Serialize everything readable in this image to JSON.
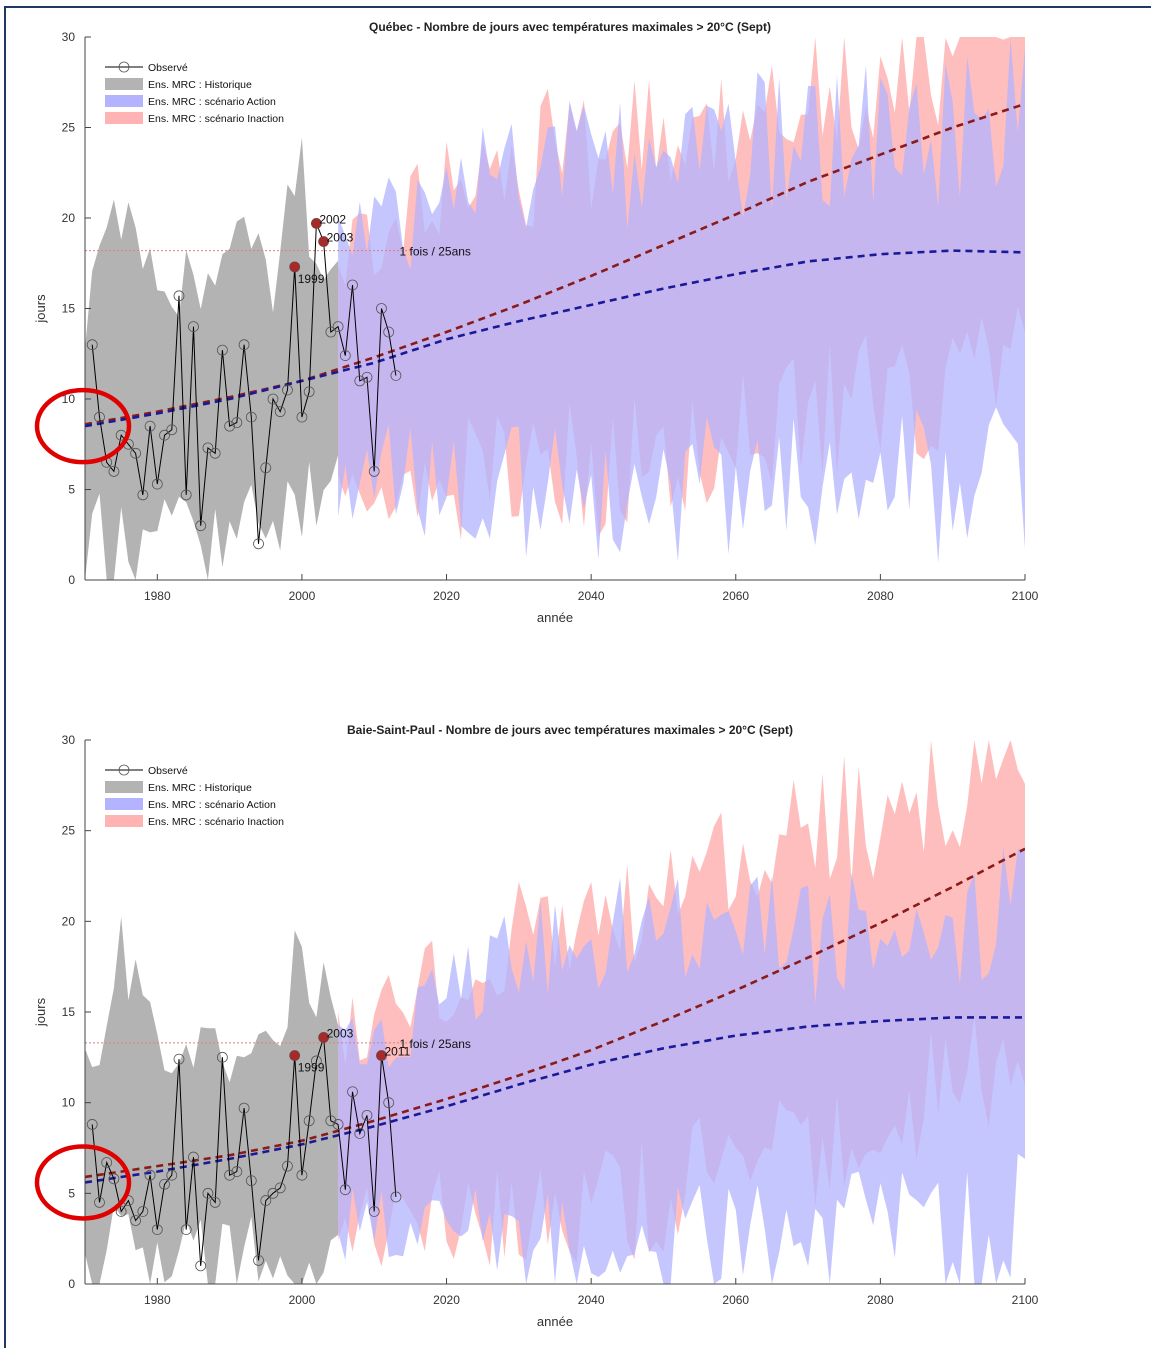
{
  "chart_data": [
    {
      "type": "line",
      "title": "Québec - Nombre de jours avec températures maximales > 20°C (Sept)",
      "xlabel": "année",
      "ylabel": "jours",
      "xlim": [
        1970,
        2100
      ],
      "ylim": [
        0,
        30
      ],
      "xticks": [
        1980,
        2000,
        2020,
        2040,
        2060,
        2080,
        2100
      ],
      "yticks": [
        0,
        5,
        10,
        15,
        20,
        25,
        30
      ],
      "grid": false,
      "legend_placement": "top-left",
      "legend": [
        "Observé",
        "Ens. MRC : Historique",
        "Ens. MRC : scénario Action",
        "Ens. MRC : scénario Inaction"
      ],
      "colors": {
        "observed": "#000000",
        "historique": "#b3b3b3",
        "action": "#b3b3ff",
        "inaction": "#ffb3b3",
        "trend_action": "#1a1a99",
        "trend_inaction": "#8b1a1a",
        "highlight": "#a52a2a",
        "threshold": "#d98080"
      },
      "threshold": {
        "y": 18.2,
        "label": "1 fois / 25ans"
      },
      "observed": {
        "x": [
          1971,
          1972,
          1973,
          1974,
          1975,
          1976,
          1977,
          1978,
          1979,
          1980,
          1981,
          1982,
          1983,
          1984,
          1985,
          1986,
          1987,
          1988,
          1989,
          1990,
          1991,
          1992,
          1993,
          1994,
          1995,
          1996,
          1997,
          1998,
          1999,
          2000,
          2001,
          2002,
          2003,
          2004,
          2005,
          2006,
          2007,
          2008,
          2009,
          2010,
          2011,
          2012,
          2013
        ],
        "y": [
          13,
          9,
          6.5,
          6,
          8,
          7.5,
          7,
          4.7,
          8.5,
          5.3,
          8,
          8.3,
          15.7,
          4.7,
          14,
          3,
          7.3,
          7,
          12.7,
          8.5,
          8.7,
          13,
          9,
          2,
          6.2,
          10,
          9.3,
          10.5,
          17.3,
          9,
          10.4,
          19.7,
          18.7,
          13.7,
          14,
          12.4,
          16.3,
          11,
          11.2,
          6,
          15,
          13.7,
          11.3
        ]
      },
      "highlighted": [
        {
          "x": 1999,
          "y": 17.3,
          "label": "1999"
        },
        {
          "x": 2002,
          "y": 19.7,
          "label": "2002"
        },
        {
          "x": 2003,
          "y": 18.7,
          "label": "2003"
        }
      ],
      "historique_band": {
        "x": [
          1970,
          1975,
          1980,
          1985,
          1990,
          1995,
          2000,
          2005
        ],
        "lower": [
          1,
          2,
          2,
          2,
          2.5,
          3,
          4,
          4.5
        ],
        "upper": [
          16,
          19,
          15,
          17,
          18,
          16,
          22,
          17
        ]
      },
      "action_band": {
        "x": [
          2005,
          2010,
          2020,
          2030,
          2040,
          2050,
          2060,
          2070,
          2080,
          2090,
          2100
        ],
        "lower": [
          6,
          6,
          5,
          5,
          4.5,
          5,
          5,
          5,
          5,
          5,
          6
        ],
        "upper": [
          18,
          19,
          21,
          23,
          23,
          24,
          24,
          24,
          25,
          25,
          26
        ]
      },
      "inaction_band": {
        "x": [
          2005,
          2010,
          2020,
          2030,
          2040,
          2050,
          2060,
          2070,
          2080,
          2090,
          2100
        ],
        "lower": [
          6,
          6,
          5.5,
          6,
          6,
          7,
          8,
          9,
          10,
          11,
          12
        ],
        "upper": [
          18,
          19,
          21,
          23,
          24,
          25,
          26,
          27,
          28,
          29,
          30
        ]
      },
      "trend_action": {
        "x": [
          1970,
          1980,
          1990,
          2000,
          2010,
          2020,
          2030,
          2040,
          2050,
          2060,
          2070,
          2080,
          2090,
          2100
        ],
        "y": [
          8.5,
          9.2,
          10,
          11,
          12,
          13.3,
          14.3,
          15.2,
          16.1,
          16.9,
          17.6,
          18,
          18.2,
          18.1
        ]
      },
      "trend_inaction": {
        "x": [
          1970,
          1980,
          1990,
          2000,
          2010,
          2020,
          2030,
          2040,
          2050,
          2060,
          2070,
          2080,
          2090,
          2100
        ],
        "y": [
          8.6,
          9.3,
          10.1,
          11,
          12.3,
          13.7,
          15.2,
          16.8,
          18.5,
          20.2,
          22,
          23.5,
          25,
          26.3
        ]
      }
    },
    {
      "type": "line",
      "title": "Baie-Saint-Paul - Nombre de jours avec températures maximales > 20°C (Sept)",
      "xlabel": "année",
      "ylabel": "jours",
      "xlim": [
        1970,
        2100
      ],
      "ylim": [
        0,
        30
      ],
      "xticks": [
        1980,
        2000,
        2020,
        2040,
        2060,
        2080,
        2100
      ],
      "yticks": [
        0,
        5,
        10,
        15,
        20,
        25,
        30
      ],
      "grid": false,
      "legend_placement": "top-left",
      "legend": [
        "Observé",
        "Ens. MRC : Historique",
        "Ens. MRC : scénario Action",
        "Ens. MRC : scénario Inaction"
      ],
      "colors": {
        "observed": "#000000",
        "historique": "#b3b3b3",
        "action": "#b3b3ff",
        "inaction": "#ffb3b3",
        "trend_action": "#1a1a99",
        "trend_inaction": "#8b1a1a",
        "highlight": "#a52a2a",
        "threshold": "#d98080"
      },
      "threshold": {
        "y": 13.3,
        "label": "1 fois / 25ans"
      },
      "observed": {
        "x": [
          1971,
          1972,
          1973,
          1974,
          1975,
          1976,
          1977,
          1978,
          1979,
          1980,
          1981,
          1982,
          1983,
          1984,
          1985,
          1986,
          1987,
          1988,
          1989,
          1990,
          1991,
          1992,
          1993,
          1994,
          1995,
          1996,
          1997,
          1998,
          1999,
          2000,
          2001,
          2002,
          2003,
          2004,
          2005,
          2006,
          2007,
          2008,
          2009,
          2010,
          2011,
          2012,
          2013
        ],
        "y": [
          8.8,
          4.5,
          6.7,
          5.8,
          4,
          4.6,
          3.5,
          4,
          6,
          3,
          5.5,
          6,
          12.4,
          3,
          7,
          1,
          5,
          4.5,
          12.5,
          6,
          6.2,
          9.7,
          5.7,
          1.3,
          4.6,
          5,
          5.3,
          6.5,
          12.6,
          6,
          9,
          12.3,
          13.6,
          9,
          8.8,
          5.2,
          10.6,
          8.3,
          9.3,
          4,
          12.6,
          10,
          4.8
        ]
      },
      "highlighted": [
        {
          "x": 1999,
          "y": 12.6,
          "label": "1999"
        },
        {
          "x": 2003,
          "y": 13.6,
          "label": "2003"
        },
        {
          "x": 2011,
          "y": 12.6,
          "label": "2011"
        }
      ],
      "historique_band": {
        "x": [
          1970,
          1975,
          1980,
          1985,
          1990,
          1995,
          2000,
          2005
        ],
        "lower": [
          0.5,
          1,
          0.8,
          1,
          1.5,
          1.5,
          2,
          2.5
        ],
        "upper": [
          11,
          19,
          13,
          14,
          13,
          12,
          18,
          13
        ]
      },
      "action_band": {
        "x": [
          2005,
          2010,
          2020,
          2030,
          2040,
          2050,
          2060,
          2070,
          2080,
          2090,
          2100
        ],
        "lower": [
          3,
          3,
          2.5,
          2.5,
          2,
          2.5,
          2.5,
          2.5,
          2.5,
          3,
          3.5
        ],
        "upper": [
          13,
          14,
          16,
          18,
          19,
          19,
          19,
          19,
          20,
          20,
          21
        ]
      },
      "inaction_band": {
        "x": [
          2005,
          2010,
          2020,
          2030,
          2040,
          2050,
          2060,
          2070,
          2080,
          2090,
          2100
        ],
        "lower": [
          3,
          3.5,
          3.5,
          4,
          4.5,
          5,
          6,
          7.5,
          9,
          11,
          13
        ],
        "upper": [
          13,
          15,
          17,
          19,
          20,
          22,
          23,
          25,
          26,
          27,
          28
        ]
      },
      "trend_action": {
        "x": [
          1970,
          1980,
          1990,
          2000,
          2010,
          2020,
          2030,
          2040,
          2050,
          2060,
          2070,
          2080,
          2090,
          2100
        ],
        "y": [
          5.6,
          6.2,
          6.9,
          7.7,
          8.7,
          9.8,
          11,
          12.1,
          13,
          13.7,
          14.2,
          14.5,
          14.7,
          14.7
        ]
      },
      "trend_inaction": {
        "x": [
          1970,
          1980,
          1990,
          2000,
          2010,
          2020,
          2030,
          2040,
          2050,
          2060,
          2070,
          2080,
          2090,
          2100
        ],
        "y": [
          5.9,
          6.5,
          7.1,
          7.9,
          9,
          10.2,
          11.5,
          12.9,
          14.5,
          16.2,
          18,
          19.9,
          21.9,
          24
        ]
      }
    }
  ]
}
